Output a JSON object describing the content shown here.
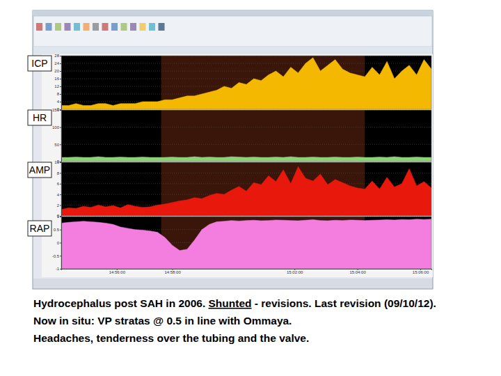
{
  "chart_data": [
    {
      "type": "area",
      "title": "ICP",
      "color": "#f5b800",
      "grid": true,
      "tick_labels": "y",
      "xlim": [
        0,
        100
      ],
      "ylim": [
        0,
        28
      ],
      "yticks": [
        0,
        4,
        8,
        12,
        16,
        20,
        24,
        28
      ],
      "highlight": [
        {
          "from": 27,
          "to": 82,
          "color": "#3a150a"
        }
      ],
      "x": [
        0,
        2,
        4,
        6,
        8,
        10,
        12,
        14,
        16,
        18,
        20,
        22,
        24,
        26,
        28,
        30,
        32,
        34,
        36,
        38,
        40,
        42,
        44,
        46,
        48,
        50,
        52,
        54,
        56,
        58,
        60,
        62,
        64,
        66,
        68,
        70,
        72,
        74,
        76,
        78,
        80,
        82,
        84,
        86,
        88,
        90,
        92,
        94,
        96,
        98,
        100
      ],
      "values": [
        2,
        2,
        3,
        2,
        2,
        3,
        3,
        2,
        3,
        3,
        3,
        4,
        4,
        4,
        5,
        5,
        6,
        7,
        7,
        8,
        9,
        10,
        12,
        11,
        14,
        13,
        16,
        15,
        18,
        20,
        17,
        22,
        19,
        24,
        27,
        20,
        23,
        26,
        21,
        19,
        18,
        17,
        22,
        18,
        25,
        16,
        20,
        23,
        18,
        26,
        21
      ]
    },
    {
      "type": "area",
      "title": "HR",
      "color": "#8fd17a",
      "grid": true,
      "tick_labels": "y",
      "xlim": [
        0,
        100
      ],
      "ylim": [
        0,
        150
      ],
      "yticks": [
        0,
        50,
        100,
        150
      ],
      "highlight": [
        {
          "from": 27,
          "to": 82,
          "color": "#3a150a"
        }
      ],
      "x": [
        0,
        2,
        4,
        6,
        8,
        10,
        12,
        14,
        16,
        18,
        20,
        22,
        24,
        26,
        28,
        30,
        32,
        34,
        36,
        38,
        40,
        42,
        44,
        46,
        48,
        50,
        52,
        54,
        56,
        58,
        60,
        62,
        64,
        66,
        68,
        70,
        72,
        74,
        76,
        78,
        80,
        82,
        84,
        86,
        88,
        90,
        92,
        94,
        96,
        98,
        100
      ],
      "values": [
        12,
        12,
        13,
        12,
        12,
        14,
        12,
        12,
        13,
        12,
        12,
        13,
        12,
        12,
        12,
        13,
        12,
        12,
        14,
        12,
        13,
        12,
        12,
        14,
        13,
        12,
        13,
        12,
        12,
        13,
        12,
        14,
        12,
        12,
        13,
        12,
        12,
        13,
        12,
        12,
        13,
        12,
        12,
        13,
        12,
        14,
        12,
        12,
        13,
        12,
        12
      ]
    },
    {
      "type": "area",
      "title": "AMP",
      "color": "#e8180c",
      "grid": true,
      "tick_labels": "y",
      "xlim": [
        0,
        100
      ],
      "ylim": [
        0,
        10
      ],
      "yticks": [
        0,
        2,
        4,
        6,
        8,
        10
      ],
      "highlight": [
        {
          "from": 27,
          "to": 82,
          "color": "#3a150a"
        }
      ],
      "x": [
        0,
        2,
        4,
        6,
        8,
        10,
        12,
        14,
        16,
        18,
        20,
        22,
        24,
        26,
        28,
        30,
        32,
        34,
        36,
        38,
        40,
        42,
        44,
        46,
        48,
        50,
        52,
        54,
        56,
        58,
        60,
        62,
        64,
        66,
        68,
        70,
        72,
        74,
        76,
        78,
        80,
        82,
        84,
        86,
        88,
        90,
        92,
        94,
        96,
        98,
        100
      ],
      "values": [
        1.2,
        1.5,
        1.4,
        1.8,
        1.6,
        2.0,
        1.7,
        1.9,
        1.5,
        2.1,
        1.8,
        1.6,
        1.7,
        2.0,
        2.2,
        2.5,
        2.8,
        3.0,
        3.4,
        3.2,
        3.8,
        4.2,
        4.0,
        4.8,
        5.5,
        4.6,
        6.2,
        5.8,
        7.5,
        6.4,
        8.6,
        6.0,
        9.2,
        7.0,
        6.5,
        7.8,
        5.8,
        6.8,
        6.2,
        5.6,
        5.2,
        5.0,
        6.5,
        5.0,
        7.2,
        5.4,
        6.0,
        8.8,
        5.6,
        6.4,
        5.2
      ]
    },
    {
      "type": "area",
      "title": "RAP",
      "color": "#f47ee0",
      "grid": true,
      "xlim": [
        0,
        100
      ],
      "ylim": [
        -1,
        1
      ],
      "yticks": [
        -1,
        -0.5,
        0,
        0.5,
        1
      ],
      "xticks": [
        {
          "value": 15,
          "label": "14:56:00"
        },
        {
          "value": 30,
          "label": "14:58:00"
        },
        {
          "value": 63,
          "label": "15:02:00"
        },
        {
          "value": 80,
          "label": "15:04:00"
        },
        {
          "value": 97,
          "label": "15:06:00"
        }
      ],
      "highlight": [
        {
          "from": 27,
          "to": 82,
          "color": "#3a150a"
        }
      ],
      "x": [
        0,
        2,
        4,
        6,
        8,
        10,
        12,
        14,
        16,
        18,
        20,
        22,
        24,
        26,
        28,
        30,
        32,
        34,
        36,
        38,
        40,
        42,
        44,
        46,
        48,
        50,
        52,
        54,
        56,
        58,
        60,
        62,
        64,
        66,
        68,
        70,
        72,
        74,
        76,
        78,
        80,
        82,
        84,
        86,
        88,
        90,
        92,
        94,
        96,
        98,
        100
      ],
      "values": [
        0.75,
        0.78,
        0.8,
        0.82,
        0.8,
        0.78,
        0.75,
        0.7,
        0.6,
        0.55,
        0.5,
        0.48,
        0.45,
        0.4,
        0.2,
        -0.1,
        -0.3,
        -0.25,
        0.1,
        0.5,
        0.7,
        0.8,
        0.82,
        0.85,
        0.83,
        0.85,
        0.86,
        0.84,
        0.85,
        0.87,
        0.86,
        0.85,
        0.84,
        0.86,
        0.88,
        0.85,
        0.84,
        0.86,
        0.85,
        0.87,
        0.86,
        0.85,
        0.86,
        0.87,
        0.88,
        0.87,
        0.89,
        0.88,
        0.9,
        0.89,
        0.9
      ]
    }
  ],
  "caption": [
    [
      {
        "text": "Hydrocephalus post SAH in 2006. "
      },
      {
        "text": "Shunted",
        "underline": true
      },
      {
        "text": " - revisions. Last revision (09/10/12)."
      }
    ],
    [
      {
        "text": "Now in situ: VP stratas @ 0.5 in line with Ommaya."
      }
    ],
    [
      {
        "text": "Headaches, tenderness over the tubing and the valve."
      }
    ]
  ]
}
